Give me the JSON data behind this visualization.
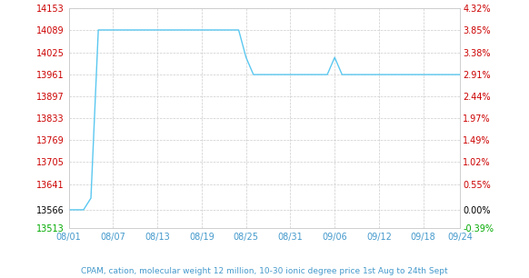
{
  "title": "CPAM, cation, molecular weight 12 million, 10-30 ionic degree price 1st Aug to 24th Sept",
  "background_color": "#ffffff",
  "line_color": "#5bc8f0",
  "left_yticks": [
    13513,
    13566,
    13641,
    13705,
    13769,
    13833,
    13897,
    13961,
    14025,
    14089,
    14153
  ],
  "right_yticks_labels": [
    "-0.39%",
    "0.00%",
    "0.55%",
    "1.02%",
    "1.49%",
    "1.97%",
    "2.44%",
    "2.91%",
    "3.38%",
    "3.85%",
    "4.32%"
  ],
  "right_ytick_colors": [
    "#00aa00",
    "#000000",
    "#cc0000",
    "#cc0000",
    "#cc0000",
    "#cc0000",
    "#cc0000",
    "#cc0000",
    "#cc0000",
    "#cc0000",
    "#cc0000"
  ],
  "left_ytick_colors": [
    "#00aa00",
    "#000000",
    "#cc0000",
    "#cc0000",
    "#cc0000",
    "#cc0000",
    "#cc0000",
    "#cc0000",
    "#cc0000",
    "#cc0000",
    "#cc0000"
  ],
  "xtick_labels": [
    "08/01",
    "08/07",
    "08/13",
    "08/19",
    "08/25",
    "08/31",
    "09/06",
    "09/12",
    "09/18",
    "09/24"
  ],
  "ymin": 13513,
  "ymax": 14153,
  "grid_color": "#cccccc",
  "x_data": [
    0,
    1,
    2,
    3,
    4,
    5,
    6,
    7,
    8,
    9,
    10,
    11,
    12,
    13,
    14,
    15,
    16,
    17,
    18,
    19,
    20,
    21,
    22,
    23,
    24,
    25,
    26,
    27,
    28,
    29,
    30,
    31,
    32,
    33,
    34,
    35,
    36,
    37,
    38,
    39,
    40,
    41,
    42,
    43,
    44,
    45,
    46,
    47,
    48,
    49,
    50,
    51,
    52,
    53
  ],
  "y_data": [
    13566,
    13566,
    13566,
    13600,
    14090,
    14090,
    14090,
    14090,
    14090,
    14090,
    14090,
    14090,
    14090,
    14090,
    14090,
    14090,
    14090,
    14090,
    14090,
    14090,
    14090,
    14090,
    14090,
    14090,
    14010,
    13960,
    13960,
    13960,
    13960,
    13960,
    13960,
    13960,
    13960,
    13960,
    13960,
    13960,
    14010,
    13960,
    13960,
    13960,
    13960,
    13960,
    13960,
    13960,
    13960,
    13960,
    13960,
    13960,
    13960,
    13960,
    13960,
    13960,
    13960,
    13960
  ],
  "xtick_positions": [
    0,
    6,
    12,
    18,
    24,
    30,
    36,
    42,
    48,
    53
  ],
  "xlim": [
    0,
    53
  ]
}
